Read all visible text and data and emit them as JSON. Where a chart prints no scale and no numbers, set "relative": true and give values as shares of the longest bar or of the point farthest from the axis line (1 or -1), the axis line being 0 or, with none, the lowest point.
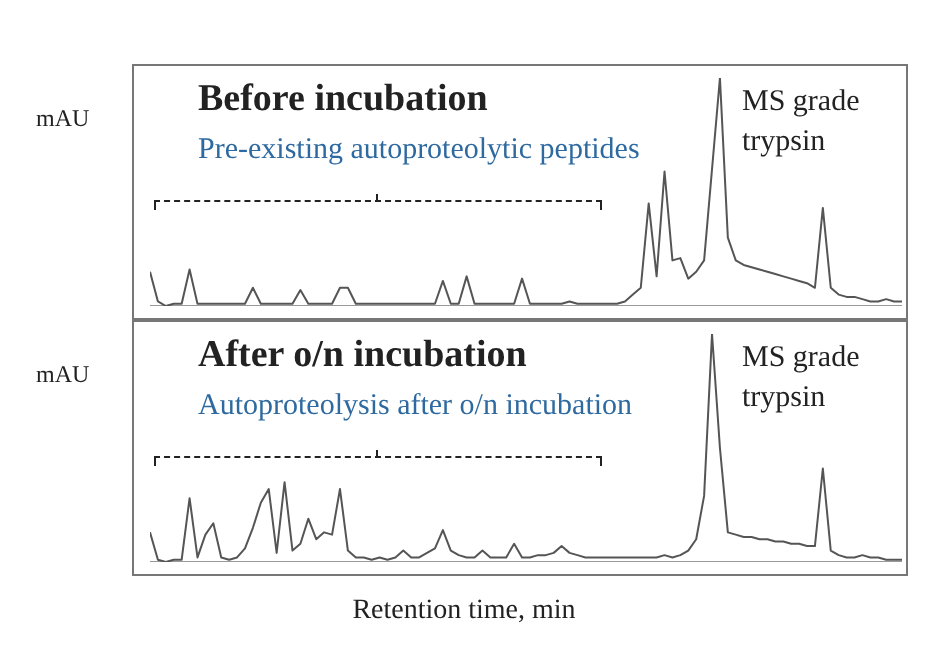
{
  "chart_data": [
    {
      "type": "line",
      "title": "Before incubation",
      "ylabel": "mAU",
      "relative": true,
      "legend": false,
      "marker": "none",
      "annotations": [
        "Pre-existing autoproteolytic peptides",
        "MS grade trypsin"
      ],
      "categories": [
        null,
        null,
        null,
        null,
        null,
        null,
        null,
        null,
        null,
        null,
        null,
        null,
        null,
        null,
        null,
        null,
        null,
        null,
        null,
        null,
        null,
        null,
        null,
        null,
        null,
        null,
        null,
        null,
        null,
        null,
        null,
        null,
        null,
        null,
        null,
        null,
        null,
        null,
        null,
        null,
        null,
        null,
        null,
        null,
        null,
        null,
        null,
        null,
        null,
        null,
        null,
        null,
        null,
        null,
        null,
        null,
        null,
        null,
        null,
        null,
        null,
        null,
        null,
        null,
        null,
        null,
        null,
        null,
        null,
        null,
        null,
        null,
        null,
        null,
        null,
        null,
        null,
        null,
        null,
        null,
        null,
        null,
        null,
        null,
        null,
        null,
        null,
        null,
        null,
        null,
        null,
        null,
        null,
        null,
        null,
        null
      ],
      "series": [
        {
          "color": "#555555",
          "values": [
            0.15,
            0.02,
            0,
            0.01,
            0.01,
            0.16,
            0.01,
            0.01,
            0.01,
            0.01,
            0.01,
            0.01,
            0.01,
            0.08,
            0.01,
            0.01,
            0.01,
            0.01,
            0.01,
            0.07,
            0.01,
            0.01,
            0.01,
            0.01,
            0.08,
            0.08,
            0.01,
            0.01,
            0.01,
            0.01,
            0.01,
            0.01,
            0.01,
            0.01,
            0.01,
            0.01,
            0.01,
            0.11,
            0.01,
            0.01,
            0.13,
            0.01,
            0.01,
            0.01,
            0.01,
            0.01,
            0.01,
            0.12,
            0.01,
            0.01,
            0.01,
            0.01,
            0.01,
            0.02,
            0.01,
            0.01,
            0.01,
            0.01,
            0.01,
            0.01,
            0.02,
            0.05,
            0.08,
            0.45,
            0.13,
            0.59,
            0.2,
            0.21,
            0.12,
            0.15,
            0.2,
            0.6,
            1.0,
            0.3,
            0.2,
            0.18,
            0.17,
            0.16,
            0.15,
            0.14,
            0.13,
            0.12,
            0.11,
            0.1,
            0.08,
            0.43,
            0.08,
            0.05,
            0.04,
            0.04,
            0.03,
            0.02,
            0.02,
            0.03,
            0.02,
            0.02
          ]
        }
      ]
    },
    {
      "type": "line",
      "title": "After o/n incubation",
      "ylabel": "mAU",
      "xlabel": "Retention time, min",
      "relative": true,
      "legend": false,
      "marker": "none",
      "annotations": [
        "Autoproteolysis after o/n incubation",
        "MS grade trypsin"
      ],
      "categories": [
        null,
        null,
        null,
        null,
        null,
        null,
        null,
        null,
        null,
        null,
        null,
        null,
        null,
        null,
        null,
        null,
        null,
        null,
        null,
        null,
        null,
        null,
        null,
        null,
        null,
        null,
        null,
        null,
        null,
        null,
        null,
        null,
        null,
        null,
        null,
        null,
        null,
        null,
        null,
        null,
        null,
        null,
        null,
        null,
        null,
        null,
        null,
        null,
        null,
        null,
        null,
        null,
        null,
        null,
        null,
        null,
        null,
        null,
        null,
        null,
        null,
        null,
        null,
        null,
        null,
        null,
        null,
        null,
        null,
        null,
        null,
        null,
        null,
        null,
        null,
        null,
        null,
        null,
        null,
        null,
        null,
        null,
        null,
        null,
        null,
        null,
        null,
        null,
        null,
        null,
        null,
        null,
        null,
        null,
        null,
        null
      ],
      "series": [
        {
          "color": "#555555",
          "values": [
            0.13,
            0.01,
            0,
            0.01,
            0.01,
            0.28,
            0.02,
            0.12,
            0.17,
            0.02,
            0.01,
            0.02,
            0.06,
            0.15,
            0.26,
            0.32,
            0.04,
            0.35,
            0.05,
            0.08,
            0.19,
            0.1,
            0.13,
            0.12,
            0.32,
            0.05,
            0.02,
            0.02,
            0.01,
            0.02,
            0.01,
            0.02,
            0.05,
            0.02,
            0.02,
            0.04,
            0.06,
            0.14,
            0.05,
            0.03,
            0.02,
            0.02,
            0.05,
            0.02,
            0.02,
            0.02,
            0.08,
            0.02,
            0.02,
            0.03,
            0.03,
            0.04,
            0.07,
            0.04,
            0.03,
            0.02,
            0.02,
            0.02,
            0.02,
            0.02,
            0.02,
            0.02,
            0.02,
            0.02,
            0.02,
            0.03,
            0.02,
            0.03,
            0.05,
            0.1,
            0.29,
            1.0,
            0.5,
            0.13,
            0.12,
            0.11,
            0.11,
            0.1,
            0.1,
            0.09,
            0.09,
            0.08,
            0.08,
            0.07,
            0.07,
            0.41,
            0.05,
            0.03,
            0.02,
            0.02,
            0.03,
            0.02,
            0.02,
            0.01,
            0.01,
            0.01
          ]
        }
      ]
    }
  ]
}
